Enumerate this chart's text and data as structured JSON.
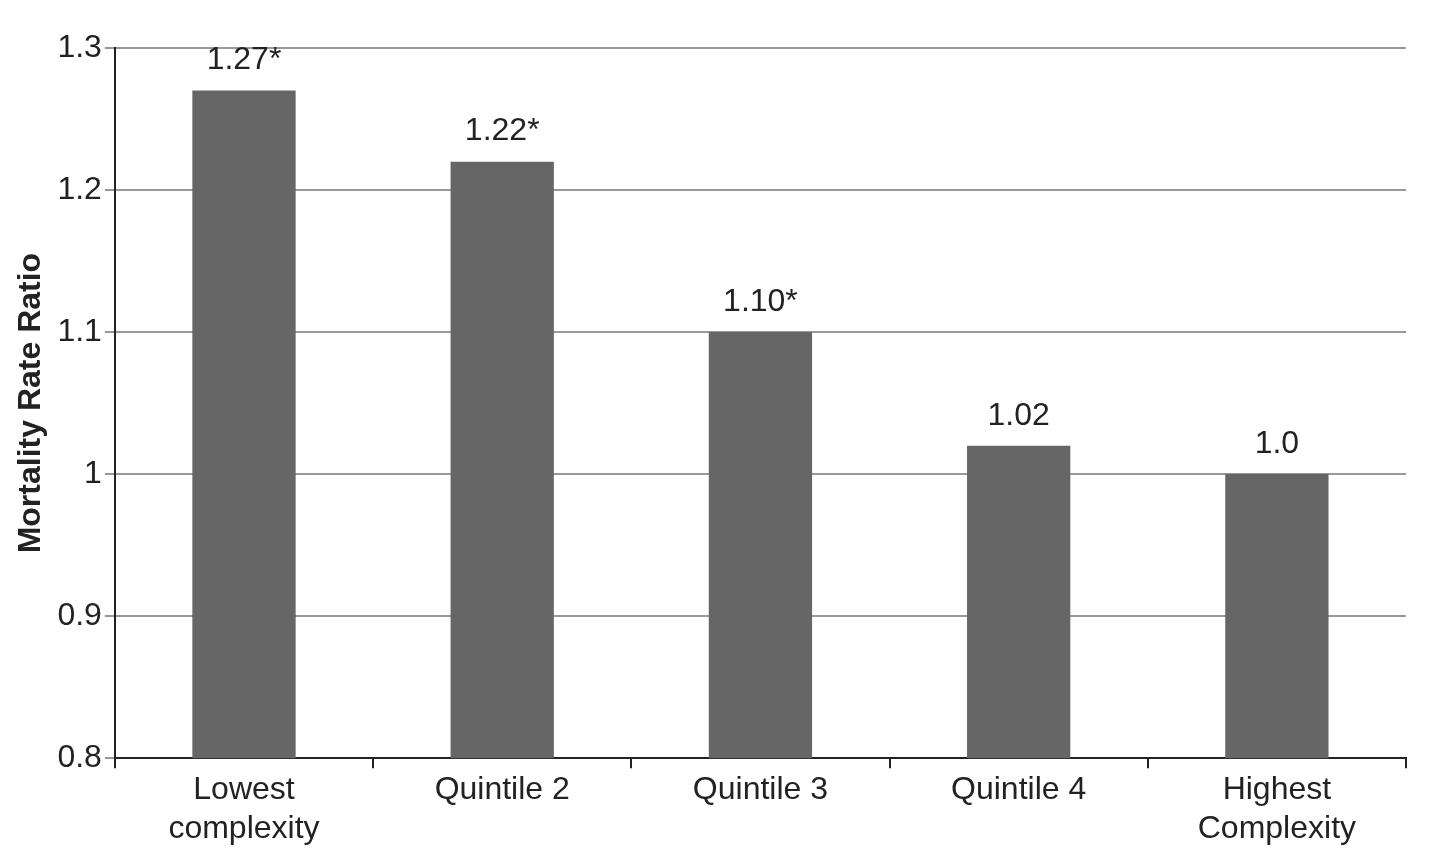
{
  "chart_data": {
    "type": "bar",
    "ylabel": "Mortality Rate Ratio",
    "categories": [
      "Lowest complexity",
      "Quintile 2",
      "Quintile 3",
      "Quintile 4",
      "Highest Complexity"
    ],
    "values": [
      1.27,
      1.22,
      1.1,
      1.02,
      1.0
    ],
    "value_labels": [
      "1.27*",
      "1.22*",
      "1.10*",
      "1.02",
      "1.0"
    ],
    "color": "#666666",
    "ylim": [
      0.8,
      1.3
    ],
    "yticks": [
      0.8,
      0.9,
      1,
      1.1,
      1.2,
      1.3
    ],
    "grid": "y",
    "legend": false
  }
}
